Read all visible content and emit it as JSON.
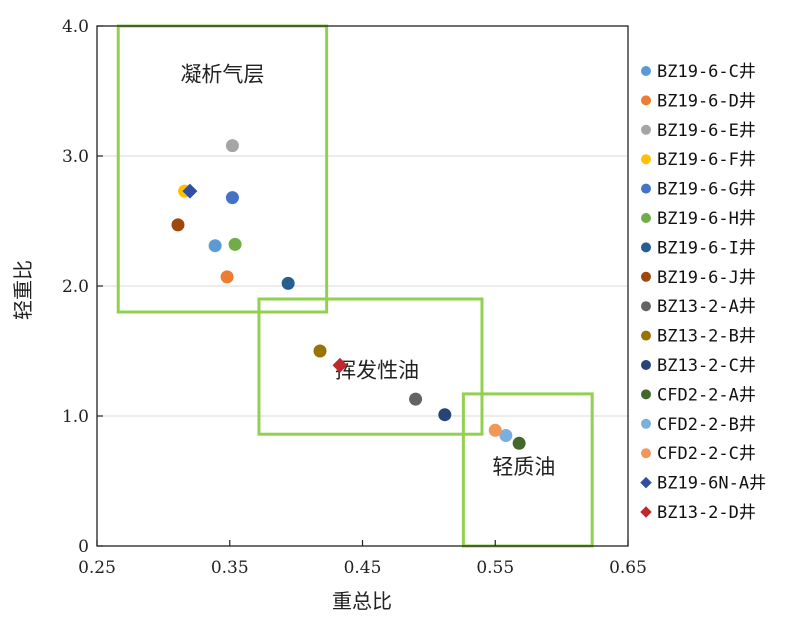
{
  "chart_data": {
    "type": "scatter",
    "xlabel": "重总比",
    "ylabel": "轻重比",
    "xlim": [
      0.25,
      0.65
    ],
    "ylim": [
      0,
      4.0
    ],
    "x_ticks": [
      "0.25",
      "0.35",
      "0.45",
      "0.55",
      "0.65"
    ],
    "y_ticks": [
      "0",
      "1.0",
      "2.0",
      "3.0",
      "4.0"
    ],
    "grid": "horizontal",
    "legend_position": "right",
    "series": [
      {
        "name": "BZ19-6-C井",
        "color": "#5b9bd5",
        "marker": "circle",
        "points": [
          {
            "x": 0.339,
            "y": 2.31
          }
        ]
      },
      {
        "name": "BZ19-6-D井",
        "color": "#ed7d31",
        "marker": "circle",
        "points": [
          {
            "x": 0.348,
            "y": 2.07
          }
        ]
      },
      {
        "name": "BZ19-6-E井",
        "color": "#a5a5a5",
        "marker": "circle",
        "points": [
          {
            "x": 0.352,
            "y": 3.08
          }
        ]
      },
      {
        "name": "BZ19-6-F井",
        "color": "#ffc000",
        "marker": "circle",
        "points": [
          {
            "x": 0.316,
            "y": 2.73
          }
        ]
      },
      {
        "name": "BZ19-6-G井",
        "color": "#4472c4",
        "marker": "circle",
        "points": [
          {
            "x": 0.352,
            "y": 2.68
          }
        ]
      },
      {
        "name": "BZ19-6-H井",
        "color": "#70ad47",
        "marker": "circle",
        "points": [
          {
            "x": 0.354,
            "y": 2.32
          }
        ]
      },
      {
        "name": "BZ19-6-I井",
        "color": "#255e91",
        "marker": "circle",
        "points": [
          {
            "x": 0.394,
            "y": 2.02
          }
        ]
      },
      {
        "name": "BZ19-6-J井",
        "color": "#9e480e",
        "marker": "circle",
        "points": [
          {
            "x": 0.311,
            "y": 2.47
          }
        ]
      },
      {
        "name": "BZ13-2-A井",
        "color": "#636363",
        "marker": "circle",
        "points": [
          {
            "x": 0.49,
            "y": 1.13
          }
        ]
      },
      {
        "name": "BZ13-2-B井",
        "color": "#997300",
        "marker": "circle",
        "points": [
          {
            "x": 0.418,
            "y": 1.5
          }
        ]
      },
      {
        "name": "BZ13-2-C井",
        "color": "#264478",
        "marker": "circle",
        "points": [
          {
            "x": 0.512,
            "y": 1.01
          }
        ]
      },
      {
        "name": "CFD2-2-A井",
        "color": "#43682b",
        "marker": "circle",
        "points": [
          {
            "x": 0.568,
            "y": 0.79
          }
        ]
      },
      {
        "name": "CFD2-2-B井",
        "color": "#7cafdd",
        "marker": "circle",
        "points": [
          {
            "x": 0.558,
            "y": 0.85
          }
        ]
      },
      {
        "name": "CFD2-2-C井",
        "color": "#f1975a",
        "marker": "circle",
        "points": [
          {
            "x": 0.55,
            "y": 0.89
          }
        ]
      },
      {
        "name": "BZ19-6N-A井",
        "color": "#2e4fa3",
        "marker": "diamond",
        "points": [
          {
            "x": 0.32,
            "y": 2.73
          }
        ]
      },
      {
        "name": "BZ13-2-D井",
        "color": "#c0282d",
        "marker": "diamond",
        "points": [
          {
            "x": 0.433,
            "y": 1.39
          }
        ]
      }
    ],
    "regions": [
      {
        "label": "凝析气层",
        "color": "#92d050",
        "x0": 0.266,
        "x1": 0.423,
        "y0": 1.8,
        "y1": 4.0
      },
      {
        "label": "挥发性油",
        "color": "#92d050",
        "x0": 0.372,
        "x1": 0.54,
        "y0": 0.86,
        "y1": 1.9
      },
      {
        "label": "轻质油",
        "color": "#92d050",
        "x0": 0.526,
        "x1": 0.623,
        "y0": 0,
        "y1": 1.17
      }
    ]
  }
}
